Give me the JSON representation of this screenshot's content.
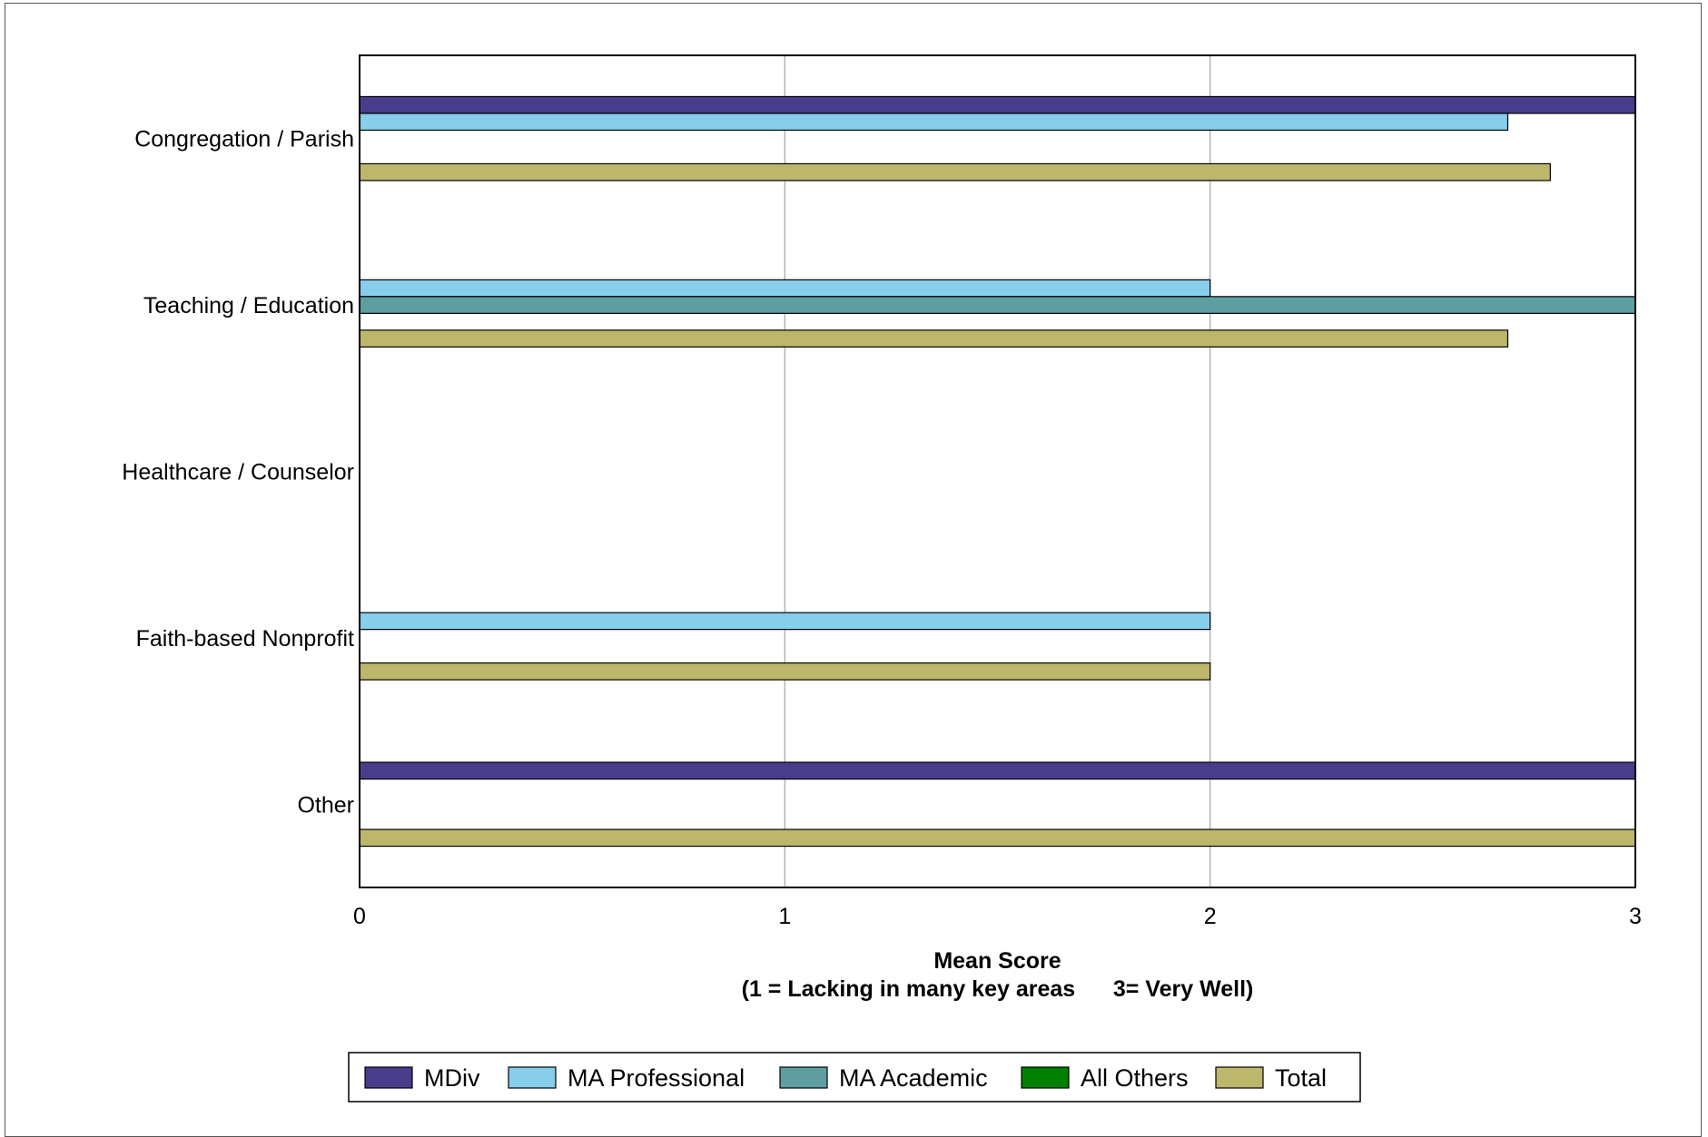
{
  "chart_data": {
    "type": "bar",
    "orientation": "horizontal",
    "categories": [
      "Congregation / Parish",
      "Teaching / Education",
      "Healthcare / Counselor",
      "Faith-based Nonprofit",
      "Other"
    ],
    "series": [
      {
        "name": "MDiv",
        "color": "#483D8B",
        "values": [
          3.0,
          null,
          null,
          null,
          3.0
        ]
      },
      {
        "name": "MA Professional",
        "color": "#87CEEB",
        "values": [
          2.7,
          2.0,
          null,
          2.0,
          null
        ]
      },
      {
        "name": "MA Academic",
        "color": "#5F9EA0",
        "values": [
          null,
          3.0,
          null,
          null,
          null
        ]
      },
      {
        "name": "All Others",
        "color": "#008000",
        "values": [
          null,
          null,
          null,
          null,
          null
        ]
      },
      {
        "name": "Total",
        "color": "#BDB76B",
        "values": [
          2.8,
          2.7,
          null,
          2.0,
          3.0
        ]
      }
    ],
    "xlabel_line1": "Mean Score",
    "xlabel_line2": "(1 = Lacking in many key areas      3= Very Well)",
    "xlim": [
      0,
      3
    ],
    "xticks": [
      0,
      1,
      2,
      3
    ],
    "grid": "vertical",
    "legend_position": "bottom"
  }
}
